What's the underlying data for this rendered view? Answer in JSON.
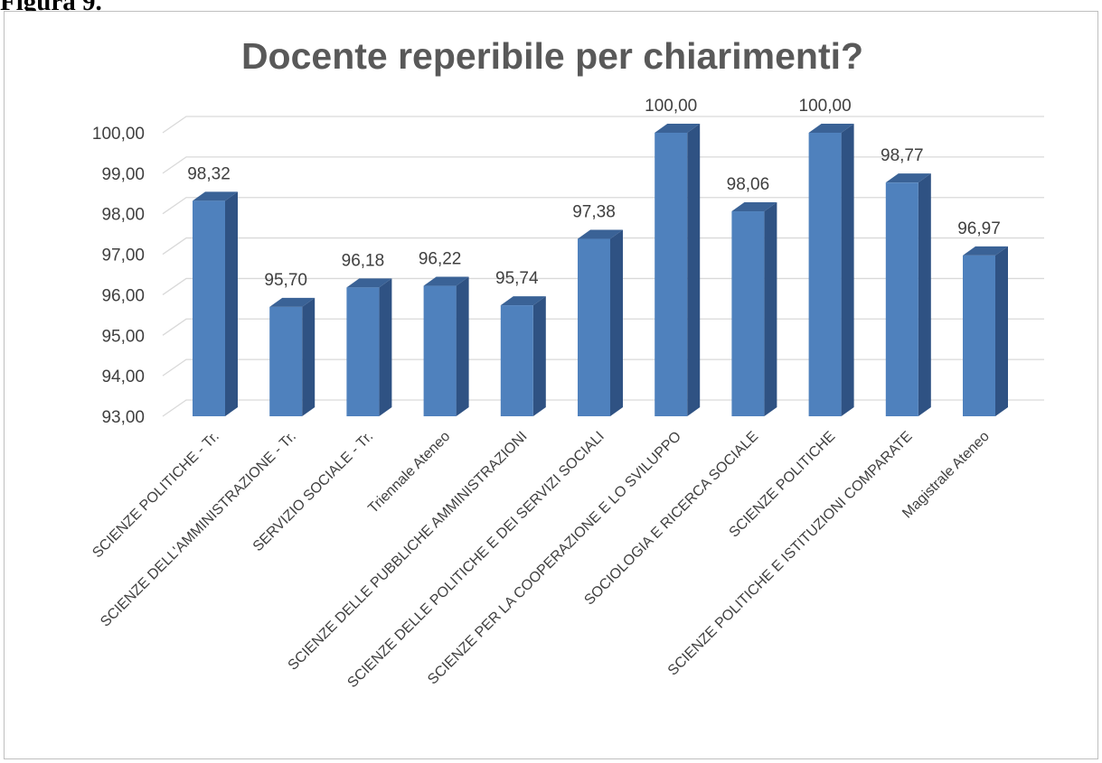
{
  "figure_label": "Figura 9.",
  "chart_data": {
    "type": "bar",
    "title": "Docente reperibile per chiarimenti?",
    "xlabel": "",
    "ylabel": "",
    "ylim": [
      93,
      100
    ],
    "y_ticks": [
      "93,00",
      "94,00",
      "95,00",
      "96,00",
      "97,00",
      "98,00",
      "99,00",
      "100,00"
    ],
    "categories": [
      "SCIENZE POLITICHE - Tr.",
      "SCIENZE DELL'AMMINISTRAZIONE - Tr.",
      "SERVIZIO SOCIALE - Tr.",
      "Triennale Ateneo",
      "SCIENZE DELLE PUBBLICHE AMMINISTRAZIONI",
      "SCIENZE DELLE POLITICHE E DEI SERVIZI SOCIALI",
      "SCIENZE PER LA COOPERAZIONE E LO SVILUPPO",
      "SOCIOLOGIA E RICERCA SOCIALE",
      "SCIENZE POLITICHE",
      "SCIENZE POLITICHE E ISTITUZIONI COMPARATE",
      "Magistrale Ateneo"
    ],
    "values": [
      98.32,
      95.7,
      96.18,
      96.22,
      95.74,
      97.38,
      100.0,
      98.06,
      100.0,
      98.77,
      96.97
    ],
    "data_labels": [
      "98,32",
      "95,70",
      "96,18",
      "96,22",
      "95,74",
      "97,38",
      "100,00",
      "98,06",
      "100,00",
      "98,77",
      "96,97"
    ],
    "colors": {
      "bar_front": "#4f81bd",
      "bar_side": "#2f5283",
      "bar_top": "#3a6296",
      "grid": "#d9d9d9"
    },
    "grid": true,
    "legend": "none"
  }
}
